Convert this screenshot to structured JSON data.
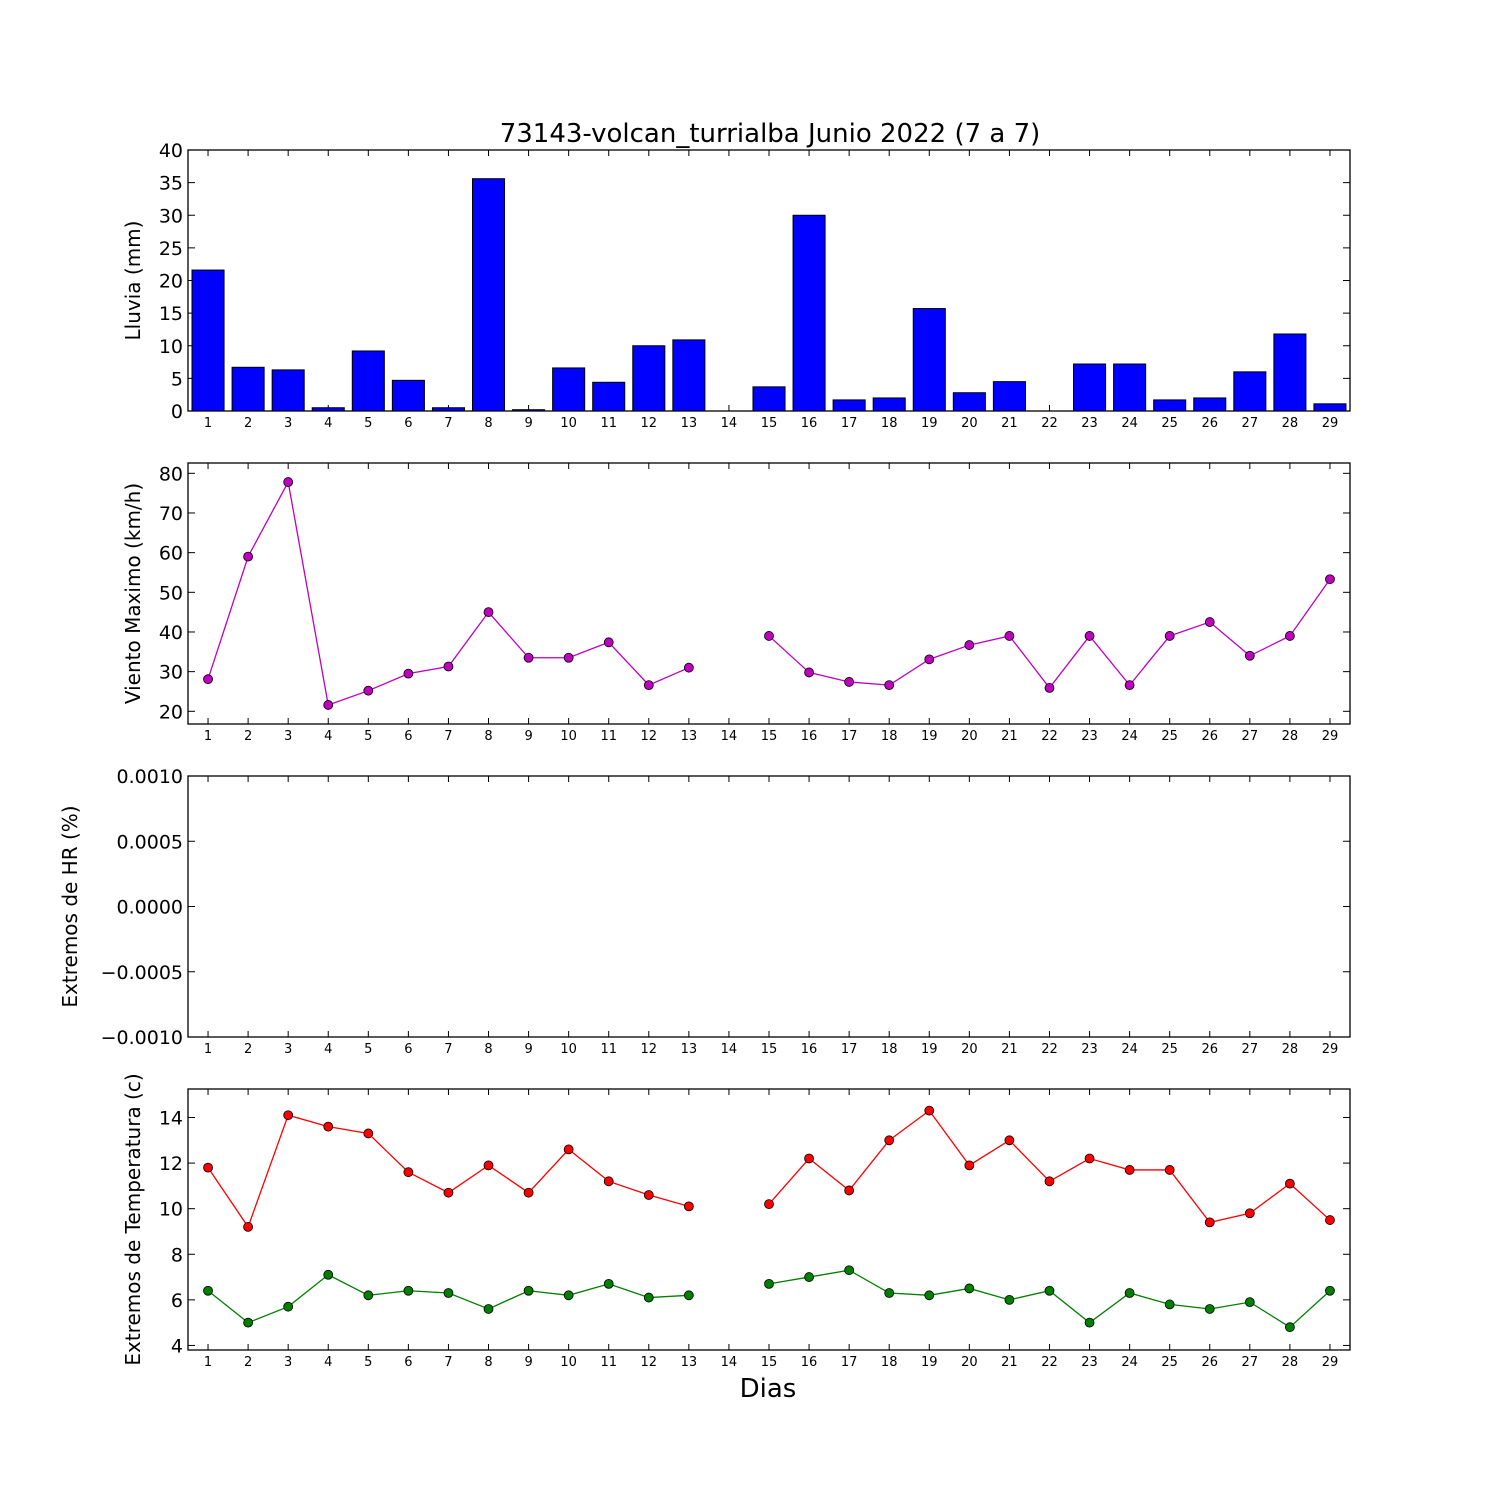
{
  "figure": {
    "title": "73143-volcan_turrialba Junio 2022  (7 a 7)",
    "xlabel": "Dias"
  },
  "chart_data": [
    {
      "type": "bar",
      "ylabel": "Lluvia (mm)",
      "ylim": [
        0,
        40
      ],
      "yticks": [
        0,
        5,
        10,
        15,
        20,
        25,
        30,
        35,
        40
      ],
      "ytick_labels": [
        "0",
        "5",
        "10",
        "15",
        "20",
        "25",
        "30",
        "35",
        "40"
      ],
      "categories": [
        "1",
        "2",
        "3",
        "4",
        "5",
        "6",
        "7",
        "8",
        "9",
        "10",
        "11",
        "12",
        "13",
        "14",
        "15",
        "16",
        "17",
        "18",
        "19",
        "20",
        "21",
        "22",
        "23",
        "24",
        "25",
        "26",
        "27",
        "28",
        "29"
      ],
      "values": [
        21.6,
        6.7,
        6.3,
        0.5,
        9.2,
        4.7,
        0.5,
        35.6,
        0.2,
        6.6,
        4.4,
        10.0,
        10.9,
        0,
        3.7,
        30.0,
        1.7,
        2.0,
        15.7,
        2.8,
        4.5,
        0,
        7.2,
        7.2,
        1.7,
        2.0,
        6.0,
        11.8,
        1.1
      ],
      "color": "#0000ff",
      "grid": false
    },
    {
      "type": "line",
      "ylabel": "Viento Maximo (km/h)",
      "ylim": [
        16.8,
        82.6
      ],
      "yticks": [
        20,
        30,
        40,
        50,
        60,
        70,
        80
      ],
      "ytick_labels": [
        "20",
        "30",
        "40",
        "50",
        "60",
        "70",
        "80"
      ],
      "categories": [
        "1",
        "2",
        "3",
        "4",
        "5",
        "6",
        "7",
        "8",
        "9",
        "10",
        "11",
        "12",
        "13",
        "14",
        "15",
        "16",
        "17",
        "18",
        "19",
        "20",
        "21",
        "22",
        "23",
        "24",
        "25",
        "26",
        "27",
        "28",
        "29"
      ],
      "series": [
        {
          "values": [
            28.1,
            59.0,
            77.8,
            21.6,
            25.2,
            29.5,
            31.3,
            45.0,
            33.5,
            33.5,
            37.4,
            26.6,
            31.0,
            null,
            39.0,
            29.8,
            27.4,
            26.6,
            33.1,
            36.7,
            39.0,
            25.9,
            39.0,
            26.6,
            39.0,
            42.5,
            34.0,
            39.0,
            53.3
          ],
          "color": "#bf00bf"
        }
      ],
      "grid": false
    },
    {
      "type": "line",
      "ylabel": "Extremos de HR (%)",
      "ylim": [
        -0.001,
        0.001
      ],
      "yticks": [
        -0.001,
        -0.0005,
        0,
        0.0005,
        0.001
      ],
      "ytick_labels": [
        "−0.0010",
        "−0.0005",
        "0.0000",
        "0.0005",
        "0.0010"
      ],
      "categories": [
        "1",
        "2",
        "3",
        "4",
        "5",
        "6",
        "7",
        "8",
        "9",
        "10",
        "11",
        "12",
        "13",
        "14",
        "15",
        "16",
        "17",
        "18",
        "19",
        "20",
        "21",
        "22",
        "23",
        "24",
        "25",
        "26",
        "27",
        "28",
        "29"
      ],
      "series": [],
      "grid": false
    },
    {
      "type": "line",
      "ylabel": "Extremos de Temperatura (c)",
      "ylim": [
        3.8,
        15.25
      ],
      "yticks": [
        4,
        6,
        8,
        10,
        12,
        14
      ],
      "ytick_labels": [
        "4",
        "6",
        "8",
        "10",
        "12",
        "14"
      ],
      "categories": [
        "1",
        "2",
        "3",
        "4",
        "5",
        "6",
        "7",
        "8",
        "9",
        "10",
        "11",
        "12",
        "13",
        "14",
        "15",
        "16",
        "17",
        "18",
        "19",
        "20",
        "21",
        "22",
        "23",
        "24",
        "25",
        "26",
        "27",
        "28",
        "29"
      ],
      "series": [
        {
          "values": [
            11.8,
            9.2,
            14.1,
            13.6,
            13.3,
            11.6,
            10.7,
            11.9,
            10.7,
            12.6,
            11.2,
            10.6,
            10.1,
            null,
            10.2,
            12.2,
            10.8,
            13.0,
            14.3,
            11.9,
            13.0,
            11.2,
            12.2,
            11.7,
            11.7,
            9.4,
            9.8,
            11.1,
            9.5
          ],
          "color": "#ff0000"
        },
        {
          "values": [
            6.4,
            5.0,
            5.7,
            7.1,
            6.2,
            6.4,
            6.3,
            5.6,
            6.4,
            6.2,
            6.7,
            6.1,
            6.2,
            null,
            6.7,
            7.0,
            7.3,
            6.3,
            6.2,
            6.5,
            6.0,
            6.4,
            5.0,
            6.3,
            5.8,
            5.6,
            5.9,
            4.8,
            6.4
          ],
          "color": "#007f00"
        }
      ],
      "grid": false
    }
  ]
}
